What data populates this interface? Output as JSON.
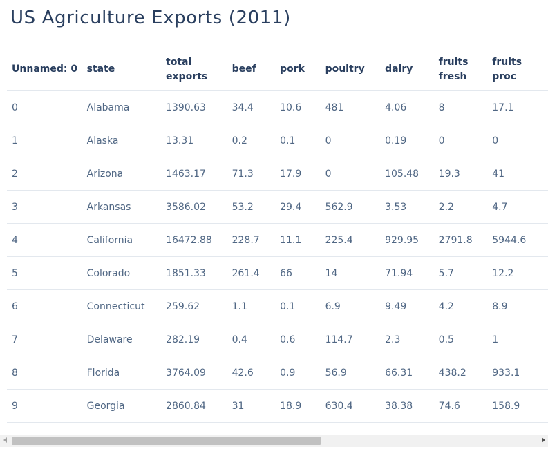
{
  "title": "US Agriculture Exports (2011)",
  "chart_data": {
    "type": "table",
    "title": "US Agriculture Exports (2011)",
    "columns": [
      "Unnamed: 0",
      "state",
      "total exports",
      "beef",
      "pork",
      "poultry",
      "dairy",
      "fruits fresh",
      "fruits proc"
    ],
    "rows": [
      [
        "0",
        "Alabama",
        "1390.63",
        "34.4",
        "10.6",
        "481",
        "4.06",
        "8",
        "17.1"
      ],
      [
        "1",
        "Alaska",
        "13.31",
        "0.2",
        "0.1",
        "0",
        "0.19",
        "0",
        "0"
      ],
      [
        "2",
        "Arizona",
        "1463.17",
        "71.3",
        "17.9",
        "0",
        "105.48",
        "19.3",
        "41"
      ],
      [
        "3",
        "Arkansas",
        "3586.02",
        "53.2",
        "29.4",
        "562.9",
        "3.53",
        "2.2",
        "4.7"
      ],
      [
        "4",
        "California",
        "16472.88",
        "228.7",
        "11.1",
        "225.4",
        "929.95",
        "2791.8",
        "5944.6"
      ],
      [
        "5",
        "Colorado",
        "1851.33",
        "261.4",
        "66",
        "14",
        "71.94",
        "5.7",
        "12.2"
      ],
      [
        "6",
        "Connecticut",
        "259.62",
        "1.1",
        "0.1",
        "6.9",
        "9.49",
        "4.2",
        "8.9"
      ],
      [
        "7",
        "Delaware",
        "282.19",
        "0.4",
        "0.6",
        "114.7",
        "2.3",
        "0.5",
        "1"
      ],
      [
        "8",
        "Florida",
        "3764.09",
        "42.6",
        "0.9",
        "56.9",
        "66.31",
        "438.2",
        "933.1"
      ],
      [
        "9",
        "Georgia",
        "2860.84",
        "31",
        "18.9",
        "630.4",
        "38.38",
        "74.6",
        "158.9"
      ]
    ]
  },
  "colors": {
    "title": "#2a3f5f",
    "header_text": "#2a3f5f",
    "cell_text": "#506784",
    "row_border": "#e3e8ee"
  }
}
